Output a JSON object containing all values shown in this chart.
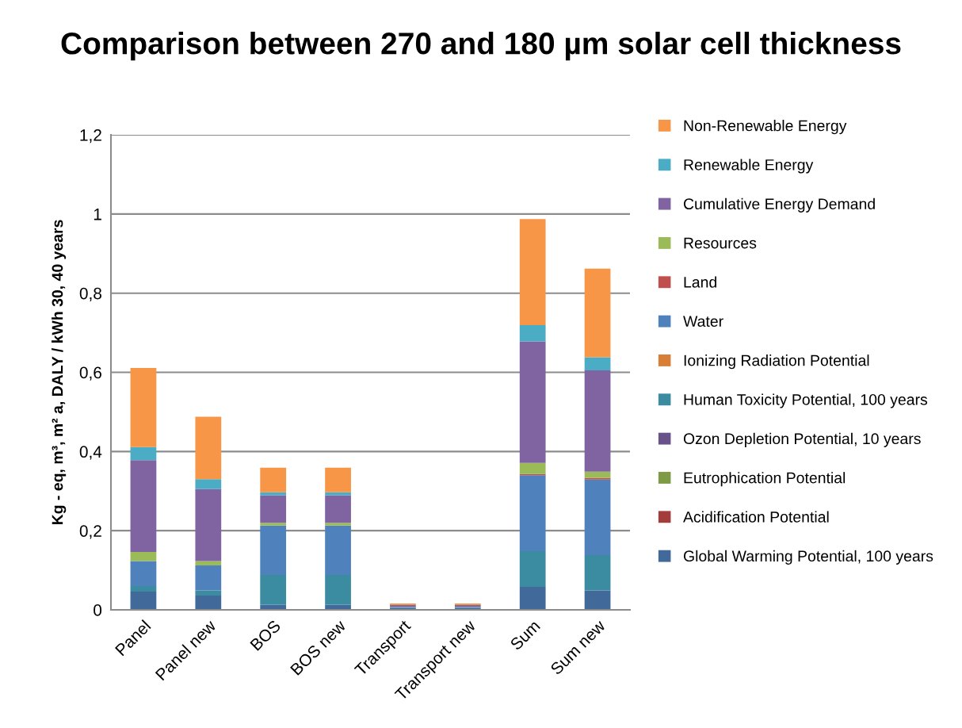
{
  "chart_data": {
    "type": "bar",
    "stacked": true,
    "title": "Comparison between 270 and 180 µm solar cell thickness",
    "ylabel": "Kg - eq, m³, m² a, DALY / kWh 30, 40 years",
    "categories": [
      "Panel",
      "Panel new",
      "BOS",
      "BOS new",
      "Transport",
      "Transport new",
      "Sum",
      "Sum new"
    ],
    "ylim": [
      0,
      1.2
    ],
    "yticks": [
      {
        "value": 0,
        "label": "0"
      },
      {
        "value": 0.2,
        "label": "0,2"
      },
      {
        "value": 0.4,
        "label": "0,4"
      },
      {
        "value": 0.6,
        "label": "0,6"
      },
      {
        "value": 0.8,
        "label": "0,8"
      },
      {
        "value": 1,
        "label": "1"
      },
      {
        "value": 1.2,
        "label": "1,2"
      }
    ],
    "grid": "y",
    "legend": "right",
    "series": [
      {
        "name": "Global Warming Potential, 100 years",
        "color": "#416a9b",
        "values": [
          0.046,
          0.036,
          0.013,
          0.013,
          0.005,
          0.005,
          0.058,
          0.049
        ]
      },
      {
        "name": "Acidification Potential",
        "color": "#a33d3b",
        "values": [
          null,
          null,
          null,
          null,
          null,
          null,
          null,
          null
        ]
      },
      {
        "name": "Eutrophication Potential",
        "color": "#7e9a45",
        "values": [
          null,
          null,
          null,
          null,
          null,
          null,
          null,
          null
        ]
      },
      {
        "name": "Ozon Depletion Potential, 10 years",
        "color": "#69528a",
        "values": [
          null,
          null,
          null,
          null,
          null,
          null,
          null,
          null
        ]
      },
      {
        "name": "Human Toxicity Potential, 100 years",
        "color": "#3b8ca0",
        "values": [
          0.014,
          0.013,
          0.075,
          0.075,
          0.002,
          0.002,
          0.09,
          0.089
        ]
      },
      {
        "name": "Ionizing Radiation Potential",
        "color": "#d77f37",
        "values": [
          null,
          null,
          null,
          null,
          null,
          null,
          null,
          null
        ]
      },
      {
        "name": "Water",
        "color": "#4f81bd",
        "values": [
          0.063,
          0.063,
          0.125,
          0.125,
          null,
          null,
          0.192,
          0.191
        ]
      },
      {
        "name": "Land",
        "color": "#c0504d",
        "values": [
          null,
          null,
          null,
          null,
          null,
          null,
          0.003,
          0.004
        ]
      },
      {
        "name": "Resources",
        "color": "#9bbb59",
        "values": [
          0.023,
          0.011,
          0.007,
          0.007,
          null,
          null,
          0.028,
          0.016
        ]
      },
      {
        "name": "Cumulative Energy Demand",
        "color": "#8064a2",
        "values": [
          0.232,
          0.182,
          0.069,
          0.069,
          0.005,
          0.005,
          0.307,
          0.256
        ]
      },
      {
        "name": "Renewable Energy",
        "color": "#4bacc6",
        "values": [
          0.033,
          0.025,
          0.008,
          0.008,
          null,
          null,
          0.041,
          0.033
        ]
      },
      {
        "name": "Non-Renewable Energy",
        "color": "#f79646",
        "values": [
          0.2,
          0.158,
          0.062,
          0.062,
          0.004,
          0.004,
          0.268,
          0.224
        ]
      }
    ]
  }
}
